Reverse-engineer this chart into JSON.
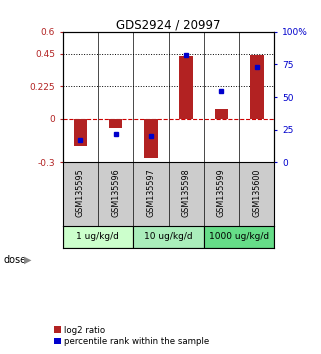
{
  "title": "GDS2924 / 20997",
  "samples": [
    "GSM135595",
    "GSM135596",
    "GSM135597",
    "GSM135598",
    "GSM135599",
    "GSM135600"
  ],
  "log2_ratio": [
    -0.19,
    -0.06,
    -0.27,
    0.43,
    0.07,
    0.44
  ],
  "percentile_rank": [
    17,
    22,
    20,
    82,
    55,
    73
  ],
  "dose_groups": [
    {
      "label": "1 ug/kg/d",
      "span": [
        0,
        2
      ],
      "color": "#ccffcc"
    },
    {
      "label": "10 ug/kg/d",
      "span": [
        2,
        4
      ],
      "color": "#aaeebb"
    },
    {
      "label": "1000 ug/kg/d",
      "span": [
        4,
        6
      ],
      "color": "#66dd88"
    }
  ],
  "dose_label": "dose",
  "ylim_left": [
    -0.3,
    0.6
  ],
  "ylim_right": [
    0,
    100
  ],
  "yticks_left": [
    -0.3,
    0,
    0.225,
    0.45,
    0.6
  ],
  "ytick_labels_left": [
    "-0.3",
    "0",
    "0.225",
    "0.45",
    "0.6"
  ],
  "yticks_right": [
    0,
    25,
    50,
    75,
    100
  ],
  "ytick_labels_right": [
    "0",
    "25",
    "50",
    "75",
    "100%"
  ],
  "hlines_dotted": [
    0.225,
    0.45
  ],
  "bar_color": "#b22222",
  "dot_color": "#0000cc",
  "zero_line_color": "#cc0000",
  "bg_color": "#ffffff",
  "plot_bg": "#ffffff",
  "sample_bg": "#cccccc",
  "legend_items": [
    "log2 ratio",
    "percentile rank within the sample"
  ]
}
